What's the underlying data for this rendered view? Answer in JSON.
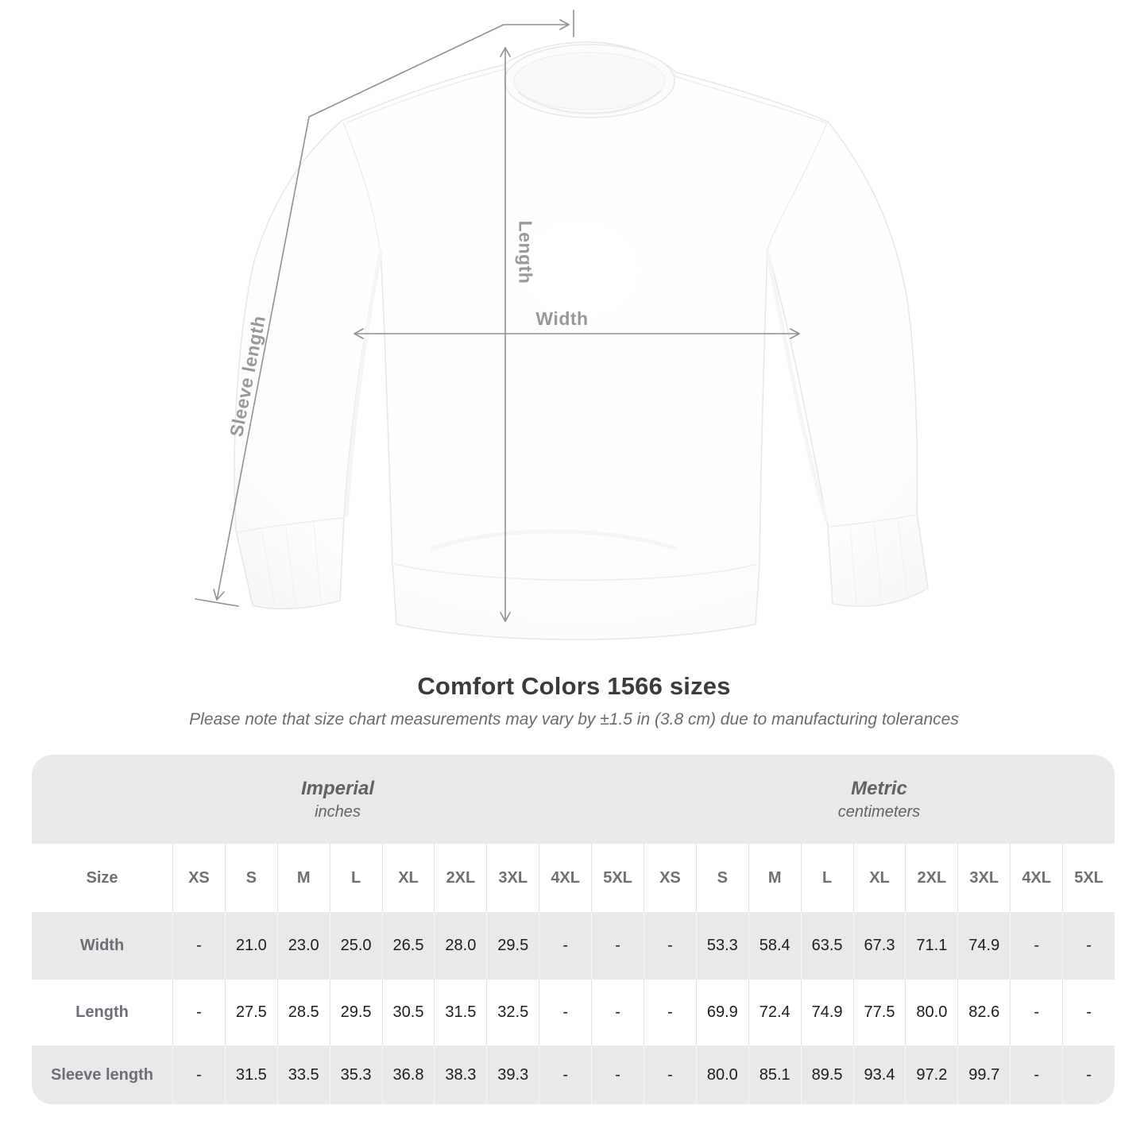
{
  "title": "Comfort Colors 1566 sizes",
  "subtitle": "Please note that size chart measurements may vary by ±1.5 in (3.8 cm) due to manufacturing tolerances",
  "diagram": {
    "width_label": "Width",
    "length_label": "Length",
    "sleeve_label": "Sleeve length"
  },
  "colors": {
    "measure_line": "#8e9194",
    "measure_label": "#96999c",
    "table_band": "#e9e9ea",
    "header_text": "#6c7076",
    "value_text": "#1c1d1f",
    "title_text": "#3a3b3d"
  },
  "chart_data": {
    "type": "table",
    "title": "Comfort Colors 1566 sizes",
    "note": "Please note that size chart measurements may vary by ±1.5 in (3.8 cm) due to manufacturing tolerances",
    "size_header": "Size",
    "unit_groups": [
      {
        "name": "Imperial",
        "unit": "inches"
      },
      {
        "name": "Metric",
        "unit": "centimeters"
      }
    ],
    "sizes": [
      "XS",
      "S",
      "M",
      "L",
      "XL",
      "2XL",
      "3XL",
      "4XL",
      "5XL"
    ],
    "rows": [
      {
        "label": "Width",
        "imperial": [
          "-",
          "21.0",
          "23.0",
          "25.0",
          "26.5",
          "28.0",
          "29.5",
          "-",
          "-"
        ],
        "metric": [
          "-",
          "53.3",
          "58.4",
          "63.5",
          "67.3",
          "71.1",
          "74.9",
          "-",
          "-"
        ]
      },
      {
        "label": "Length",
        "imperial": [
          "-",
          "27.5",
          "28.5",
          "29.5",
          "30.5",
          "31.5",
          "32.5",
          "-",
          "-"
        ],
        "metric": [
          "-",
          "69.9",
          "72.4",
          "74.9",
          "77.5",
          "80.0",
          "82.6",
          "-",
          "-"
        ]
      },
      {
        "label": "Sleeve length",
        "imperial": [
          "-",
          "31.5",
          "33.5",
          "35.3",
          "36.8",
          "38.3",
          "39.3",
          "-",
          "-"
        ],
        "metric": [
          "-",
          "80.0",
          "85.1",
          "89.5",
          "93.4",
          "97.2",
          "99.7",
          "-",
          "-"
        ]
      }
    ]
  }
}
